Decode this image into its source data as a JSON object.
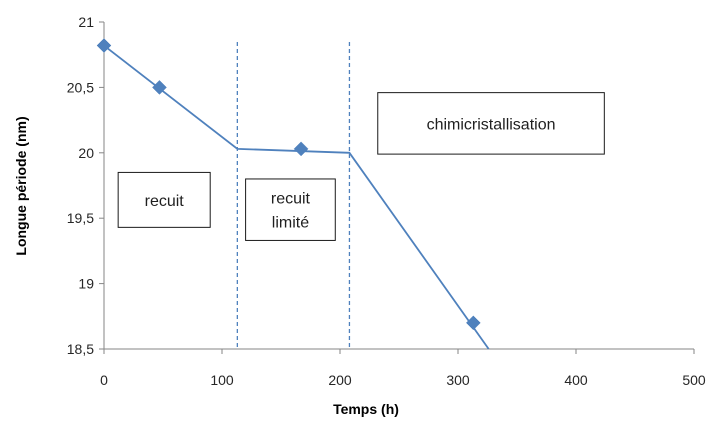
{
  "chart_data": {
    "type": "line",
    "xlabel": "Temps (h)",
    "ylabel": "Longue période (nm)",
    "xlim": [
      0,
      500
    ],
    "ylim": [
      18.5,
      21
    ],
    "x_ticks": [
      0,
      100,
      200,
      300,
      400,
      500
    ],
    "x_tick_labels": [
      "0",
      "100",
      "200",
      "300",
      "400",
      "500"
    ],
    "y_ticks": [
      18.5,
      19,
      19.5,
      20,
      20.5,
      21
    ],
    "y_tick_labels": [
      "18,5",
      "19",
      "19,5",
      "20",
      "20,5",
      "21"
    ],
    "grid": false,
    "series": [
      {
        "points": [
          {
            "x": 0,
            "y": 20.82
          },
          {
            "x": 47,
            "y": 20.5
          },
          {
            "x": 167,
            "y": 20.03
          },
          {
            "x": 313,
            "y": 18.7
          }
        ],
        "color": "#4f81bd"
      }
    ],
    "trend_line": {
      "points": [
        {
          "x": 0,
          "y": 20.82
        },
        {
          "x": 113,
          "y": 20.03
        },
        {
          "x": 208,
          "y": 20.0
        },
        {
          "x": 326,
          "y": 18.5
        }
      ],
      "color": "#4f81bd"
    },
    "vertical_lines": [
      {
        "x": 113,
        "style": "dashed",
        "color": "#4f81bd"
      },
      {
        "x": 208,
        "style": "dashed",
        "color": "#4f81bd"
      }
    ],
    "annotations": [
      {
        "lines": [
          "recuit"
        ],
        "x": [
          12,
          90
        ],
        "y": [
          19.43,
          19.85
        ]
      },
      {
        "lines": [
          "recuit",
          "limité"
        ],
        "x": [
          120,
          196
        ],
        "y": [
          19.33,
          19.8
        ]
      },
      {
        "lines": [
          "chimicristallisation"
        ],
        "x": [
          232,
          424
        ],
        "y": [
          19.99,
          20.46
        ]
      }
    ]
  }
}
